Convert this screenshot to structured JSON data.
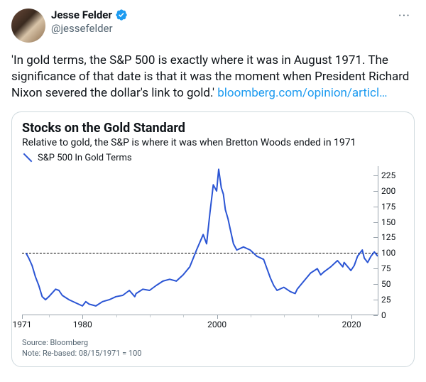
{
  "tweet": {
    "author": {
      "display_name": "Jesse Felder",
      "handle": "@jessefelder",
      "verified": true
    },
    "more_glyph": "···",
    "text": "'In gold terms, the S&P 500 is exactly where it was in August 1971. The significance of that date is that it was the moment when President Richard Nixon severed the dollar's link to gold.'",
    "link_text": "bloomberg.com/opinion/articl…"
  },
  "chart": {
    "type": "line",
    "title": "Stocks on the Gold Standard",
    "subtitle": "Relative to gold, the S&P is where it was when Bretton Woods ended in 1971",
    "legend_label": "S&P 500 In Gold Terms",
    "series_color": "#2b55d4",
    "grid_color": "#9aa4ad",
    "background_color": "#ffffff",
    "reference_line": {
      "value": 100,
      "style": "dashed",
      "color": "#000000"
    },
    "ylim": [
      0,
      240
    ],
    "yticks": [
      0,
      25,
      50,
      75,
      100,
      125,
      150,
      175,
      200,
      225
    ],
    "x_range_years": [
      1971,
      2024
    ],
    "xticks_major": [
      1971,
      1980,
      2000,
      2020
    ],
    "xticks_minor": [
      1975,
      1985,
      1990,
      1995,
      2005,
      2010,
      2015
    ],
    "source_line": "Source: Bloomberg",
    "note_line": "Note: Re-based: 08/15/1971 = 100",
    "series": [
      {
        "x": 1971.6,
        "y": 100
      },
      {
        "x": 1972,
        "y": 92
      },
      {
        "x": 1972.5,
        "y": 80
      },
      {
        "x": 1973,
        "y": 62
      },
      {
        "x": 1973.5,
        "y": 48
      },
      {
        "x": 1974,
        "y": 30
      },
      {
        "x": 1974.5,
        "y": 25
      },
      {
        "x": 1975,
        "y": 30
      },
      {
        "x": 1976,
        "y": 42
      },
      {
        "x": 1976.5,
        "y": 40
      },
      {
        "x": 1977,
        "y": 32
      },
      {
        "x": 1978,
        "y": 25
      },
      {
        "x": 1979,
        "y": 20
      },
      {
        "x": 1980,
        "y": 15
      },
      {
        "x": 1980.5,
        "y": 22
      },
      {
        "x": 1981,
        "y": 18
      },
      {
        "x": 1982,
        "y": 15
      },
      {
        "x": 1983,
        "y": 22
      },
      {
        "x": 1984,
        "y": 25
      },
      {
        "x": 1985,
        "y": 30
      },
      {
        "x": 1986,
        "y": 32
      },
      {
        "x": 1987,
        "y": 40
      },
      {
        "x": 1987.8,
        "y": 30
      },
      {
        "x": 1988,
        "y": 35
      },
      {
        "x": 1989,
        "y": 42
      },
      {
        "x": 1990,
        "y": 40
      },
      {
        "x": 1991,
        "y": 48
      },
      {
        "x": 1992,
        "y": 55
      },
      {
        "x": 1993,
        "y": 58
      },
      {
        "x": 1994,
        "y": 55
      },
      {
        "x": 1995,
        "y": 65
      },
      {
        "x": 1996,
        "y": 78
      },
      {
        "x": 1997,
        "y": 105
      },
      {
        "x": 1998,
        "y": 130
      },
      {
        "x": 1998.5,
        "y": 115
      },
      {
        "x": 1999,
        "y": 165
      },
      {
        "x": 1999.5,
        "y": 210
      },
      {
        "x": 2000,
        "y": 200
      },
      {
        "x": 2000.3,
        "y": 235
      },
      {
        "x": 2000.7,
        "y": 205
      },
      {
        "x": 2001,
        "y": 195
      },
      {
        "x": 2001.3,
        "y": 170
      },
      {
        "x": 2001.7,
        "y": 155
      },
      {
        "x": 2002,
        "y": 140
      },
      {
        "x": 2002.5,
        "y": 115
      },
      {
        "x": 2003,
        "y": 105
      },
      {
        "x": 2004,
        "y": 110
      },
      {
        "x": 2005,
        "y": 105
      },
      {
        "x": 2006,
        "y": 95
      },
      {
        "x": 2007,
        "y": 90
      },
      {
        "x": 2008,
        "y": 60
      },
      {
        "x": 2008.5,
        "y": 48
      },
      {
        "x": 2009,
        "y": 40
      },
      {
        "x": 2010,
        "y": 45
      },
      {
        "x": 2011,
        "y": 38
      },
      {
        "x": 2011.7,
        "y": 35
      },
      {
        "x": 2012,
        "y": 42
      },
      {
        "x": 2013,
        "y": 55
      },
      {
        "x": 2014,
        "y": 68
      },
      {
        "x": 2015,
        "y": 75
      },
      {
        "x": 2015.5,
        "y": 65
      },
      {
        "x": 2016,
        "y": 70
      },
      {
        "x": 2017,
        "y": 78
      },
      {
        "x": 2018,
        "y": 88
      },
      {
        "x": 2018.8,
        "y": 78
      },
      {
        "x": 2019,
        "y": 85
      },
      {
        "x": 2020,
        "y": 72
      },
      {
        "x": 2020.5,
        "y": 80
      },
      {
        "x": 2021,
        "y": 95
      },
      {
        "x": 2021.7,
        "y": 105
      },
      {
        "x": 2022,
        "y": 92
      },
      {
        "x": 2022.5,
        "y": 85
      },
      {
        "x": 2023,
        "y": 95
      },
      {
        "x": 2023.5,
        "y": 102
      },
      {
        "x": 2024,
        "y": 95
      }
    ]
  },
  "colors": {
    "link": "#1d9bf0",
    "text_muted": "#536471"
  }
}
